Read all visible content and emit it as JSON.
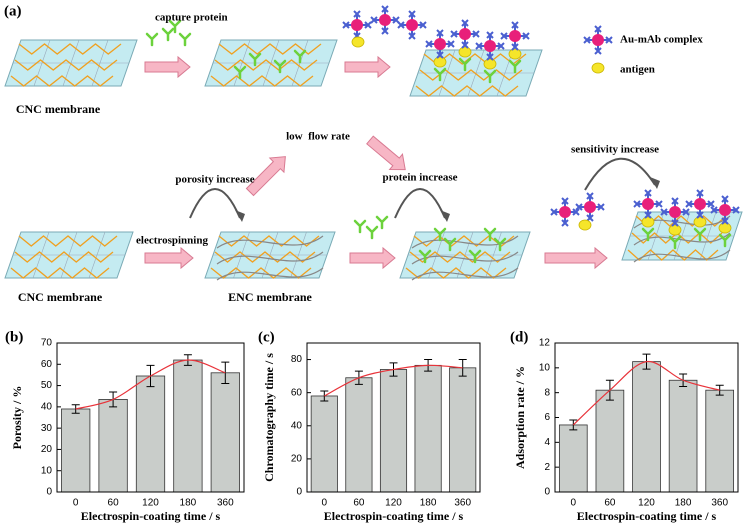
{
  "diagram": {
    "panel_label": "(a)",
    "capture_protein": "capture protein",
    "legend_complex": "Au-mAb complex",
    "legend_antigen": "antigen",
    "cnc_top": "CNC membrane",
    "low_flow": "low  flow rate",
    "porosity": "porosity increase",
    "protein": "protein increase",
    "sensitivity": "sensitivity increase",
    "electrospinning": "electrospinning",
    "cnc_bottom": "CNC membrane",
    "enc": "ENC membrane"
  },
  "chart_data": [
    {
      "type": "bar",
      "label": "(b)",
      "x_label": "Electrospin-coating time / s",
      "y_label": "Porosity / %",
      "categories": [
        "0",
        "60",
        "120",
        "180",
        "360"
      ],
      "values": [
        39,
        43.5,
        54.5,
        62,
        56
      ],
      "errors": [
        2,
        3.5,
        5,
        2.5,
        5
      ],
      "ylim": [
        0,
        70
      ],
      "yticks": [
        0,
        10,
        20,
        30,
        40,
        50,
        60,
        70
      ],
      "color": "#c9cdca",
      "curve_color": "#e8333a"
    },
    {
      "type": "bar",
      "label": "(c)",
      "x_label": "Electrospin-coating time / s",
      "y_label": "Chromatography time / s",
      "categories": [
        "0",
        "60",
        "120",
        "180",
        "360"
      ],
      "values": [
        58,
        69,
        74,
        76.5,
        75
      ],
      "errors": [
        3,
        4,
        4,
        3.5,
        5
      ],
      "ylim": [
        0,
        90
      ],
      "yticks": [
        0,
        20,
        40,
        60,
        80
      ],
      "color": "#c9cdca",
      "curve_color": "#e8333a"
    },
    {
      "type": "bar",
      "label": "(d)",
      "x_label": "Electrospin-coating time / s",
      "y_label": "Adsorption rate / %",
      "categories": [
        "0",
        "60",
        "120",
        "180",
        "360"
      ],
      "values": [
        5.4,
        8.2,
        10.5,
        9.0,
        8.2
      ],
      "errors": [
        0.4,
        0.8,
        0.6,
        0.5,
        0.4
      ],
      "ylim": [
        0,
        12
      ],
      "yticks": [
        0,
        2,
        4,
        6,
        8,
        10,
        12
      ],
      "color": "#c9cdca",
      "curve_color": "#e8333a"
    }
  ]
}
